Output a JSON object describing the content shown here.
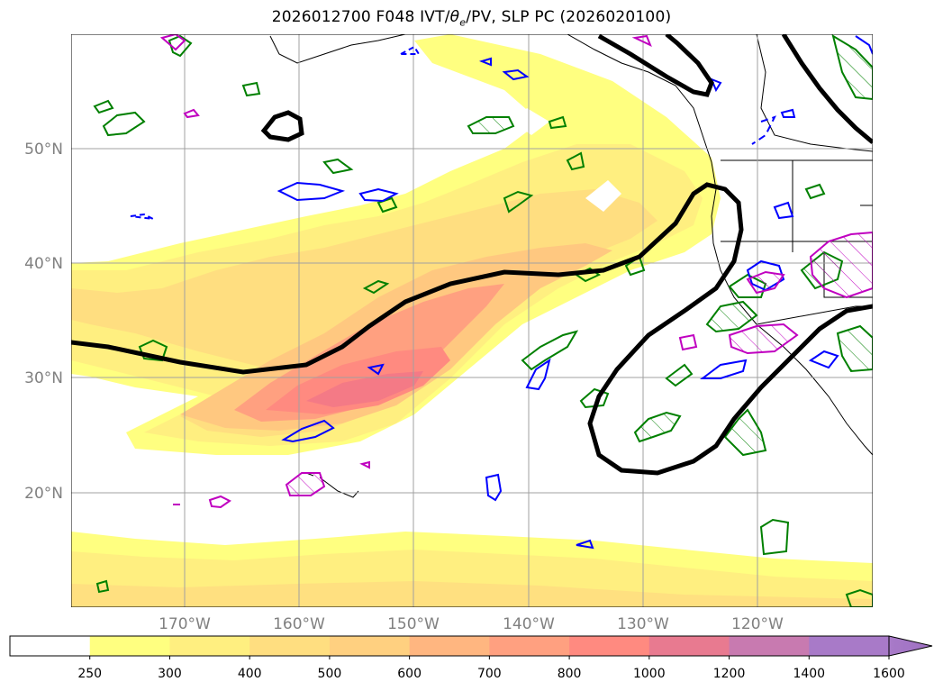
{
  "title": {
    "main": "2026012700 F048 IVT/",
    "theta": "θ",
    "theta_sub": "e",
    "rest": "/PV, SLP PC (2026020100)"
  },
  "lat_labels": [
    "50°N",
    "40°N",
    "30°N",
    "20°N"
  ],
  "lon_labels": [
    "170°W",
    "160°W",
    "150°W",
    "140°W",
    "130°W",
    "120°W"
  ],
  "colorbar": {
    "ticks": [
      "250",
      "300",
      "400",
      "500",
      "600",
      "700",
      "800",
      "1000",
      "1200",
      "1400",
      "1600"
    ],
    "colors": [
      "#ffffff",
      "#ffff80",
      "#ffef80",
      "#ffde80",
      "#ffd080",
      "#ffb680",
      "#ffa080",
      "#ff8a80",
      "#e87a90",
      "#c87ab0",
      "#a87ac8"
    ]
  },
  "legend_colors": {
    "slp": "#000000",
    "pv_pos": "#0000ff",
    "theta_e": "#008000",
    "pv_neg": "#c000c0"
  }
}
